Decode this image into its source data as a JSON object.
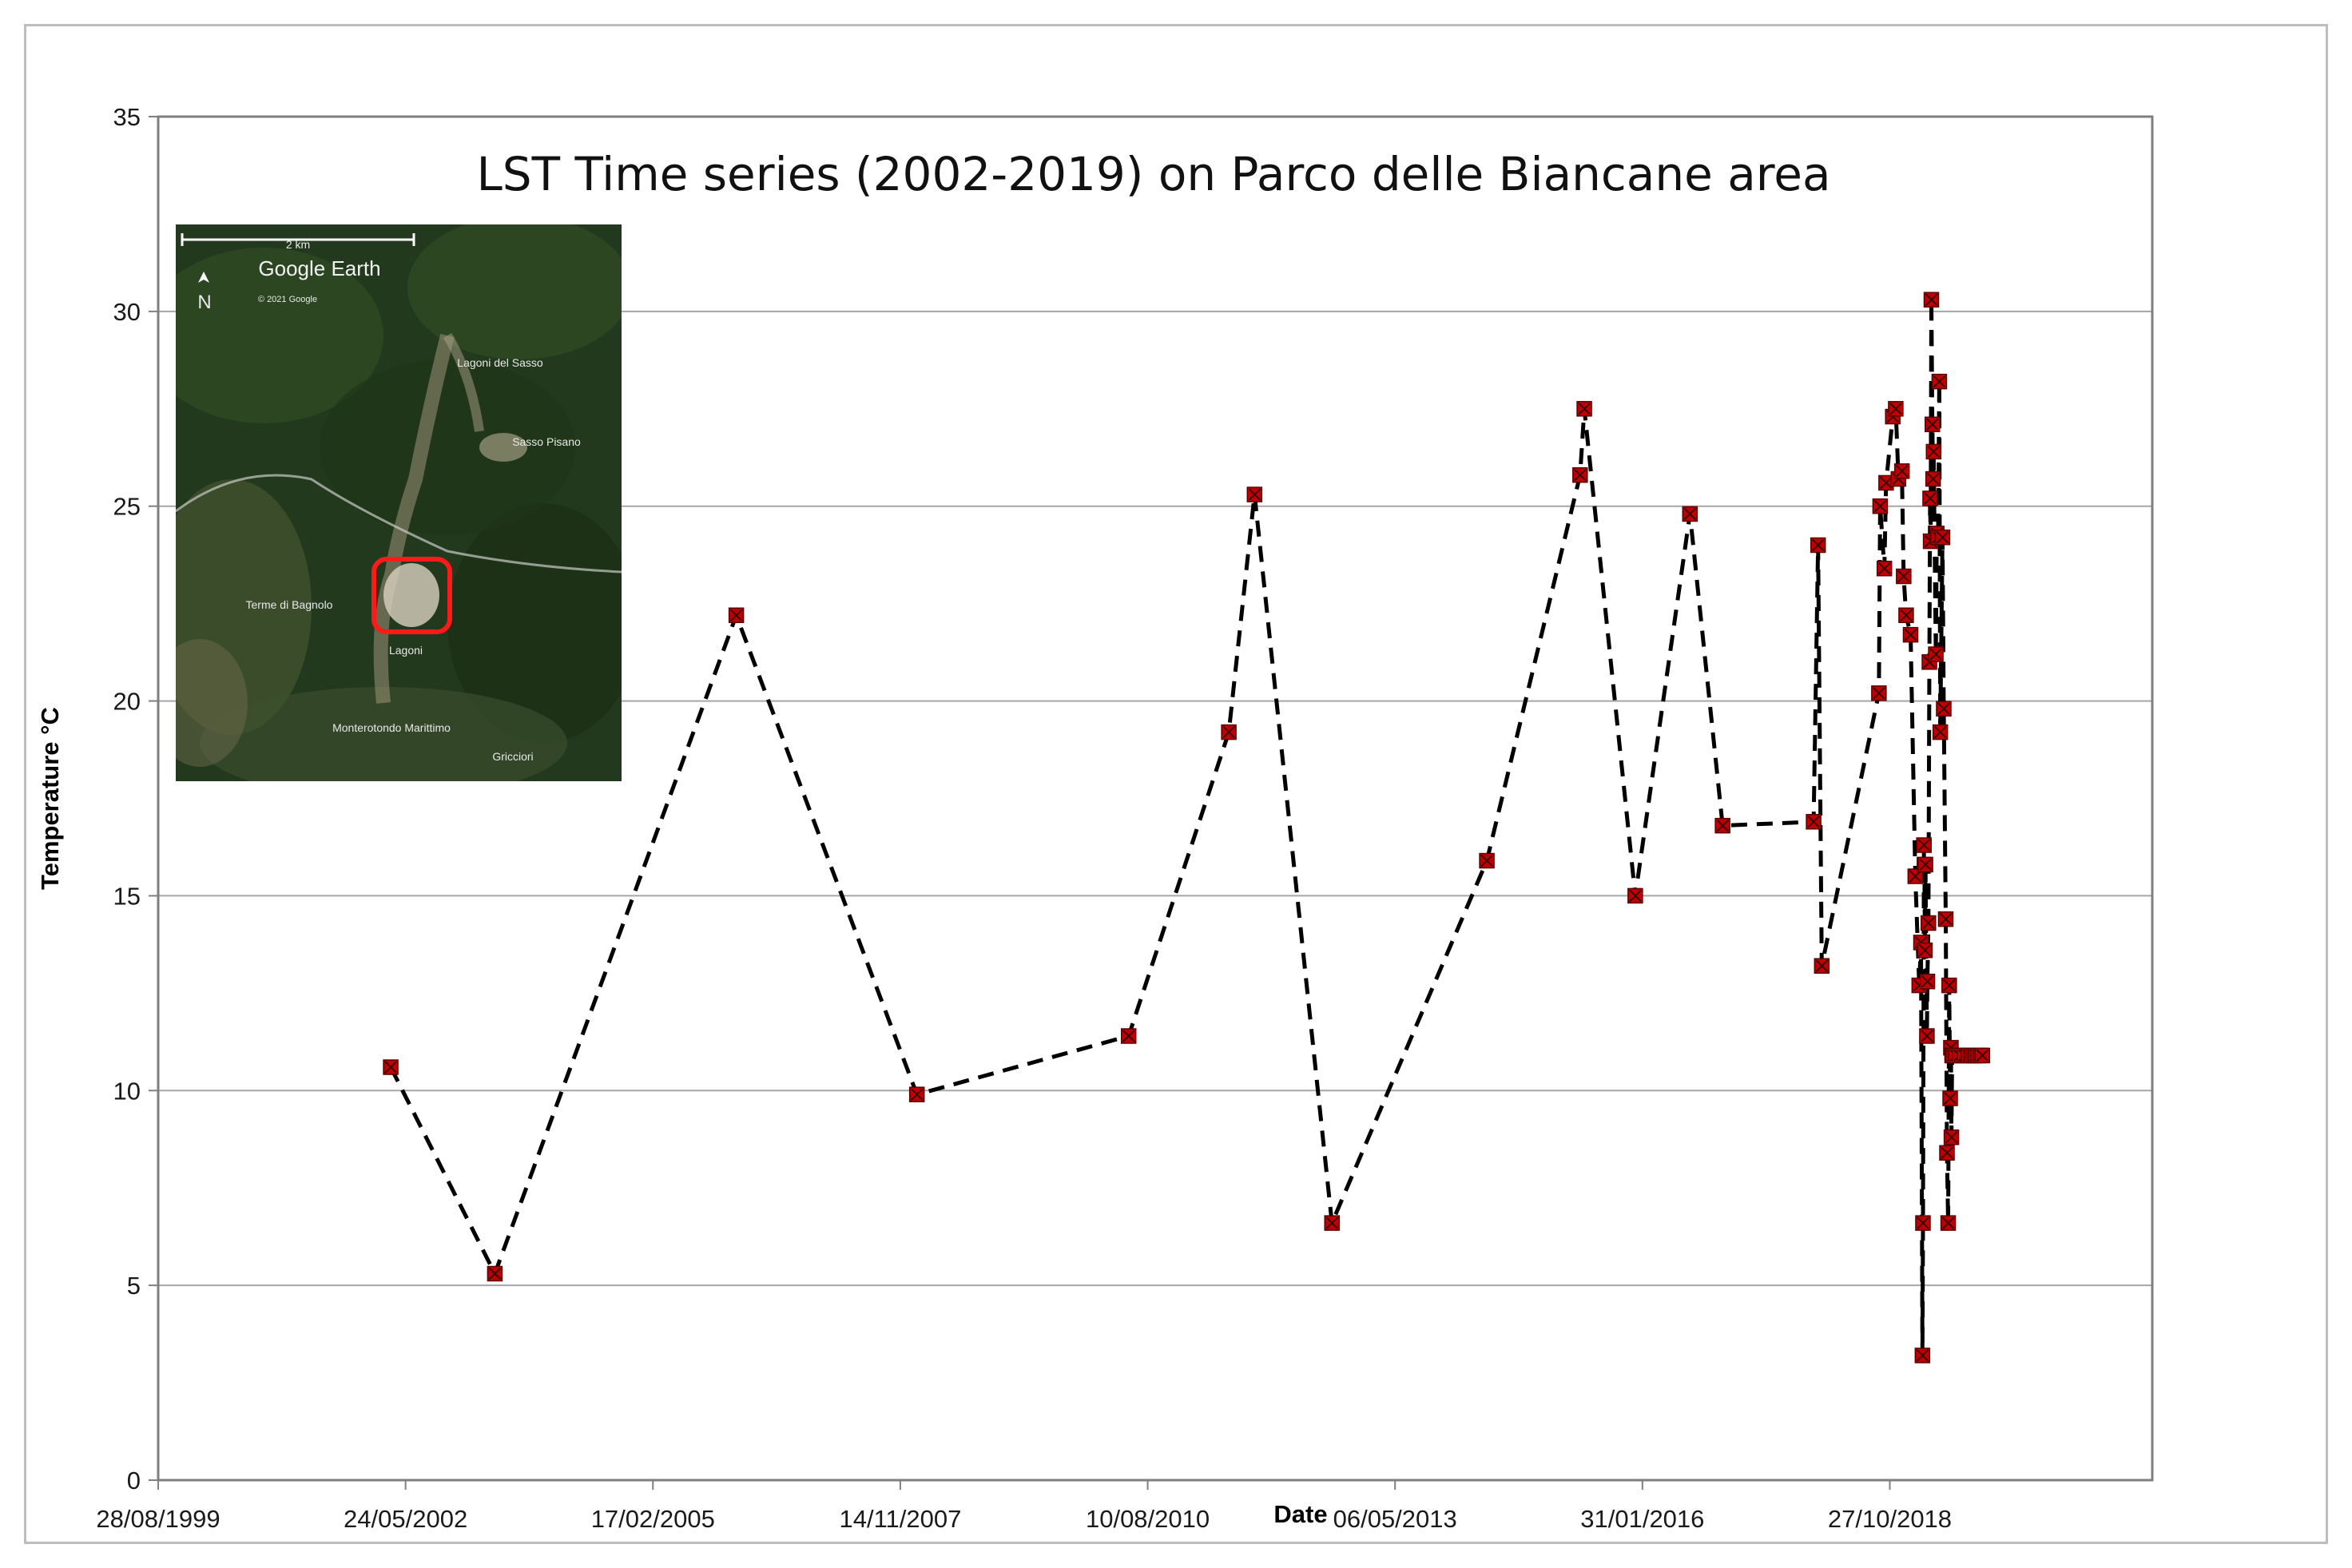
{
  "chart_data": {
    "type": "scatter",
    "title": "LST Time series (2002-2019) on Parco delle Biancane area",
    "xlabel": "Date",
    "ylabel": "Temperature °C",
    "ylim": [
      0,
      35
    ],
    "yticks": [
      0,
      5,
      10,
      15,
      20,
      25,
      30,
      35
    ],
    "xlim": [
      "1999-08-28",
      "2021-09-22"
    ],
    "xticks": [
      "1999-08-28",
      "2002-05-24",
      "2005-02-17",
      "2007-11-14",
      "2010-08-10",
      "2013-05-06",
      "2016-01-31",
      "2018-10-27"
    ],
    "xtick_labels": [
      "28/08/1999",
      "24/05/2002",
      "17/02/2005",
      "14/11/2007",
      "10/08/2010",
      "06/05/2013",
      "31/01/2016",
      "27/10/2018"
    ],
    "grid": "horizontal",
    "legend": "none",
    "line_style": "dashed",
    "line_color": "#000000",
    "marker_color": "#c00000",
    "series": [
      {
        "x": [
          "2002-03-25",
          "2003-05-20",
          "2006-01-20",
          "2008-01-20",
          "2010-05-25",
          "2011-07-04",
          "2011-10-16",
          "2012-08-24",
          "2014-05-12",
          "2015-05-24",
          "2015-06-10",
          "2016-01-02",
          "2016-08-10",
          "2016-12-20",
          "2017-12-23",
          "2018-01-10",
          "2018-01-25",
          "2018-09-13",
          "2018-09-18",
          "2018-10-05",
          "2018-10-12",
          "2018-11-08",
          "2018-11-20",
          "2018-12-01",
          "2018-12-15",
          "2018-12-22",
          "2019-01-01",
          "2019-01-19",
          "2019-02-07",
          "2019-02-23",
          "2019-03-02",
          "2019-03-08",
          "2019-03-10",
          "2019-03-14",
          "2019-03-16",
          "2019-03-18",
          "2019-03-20",
          "2019-03-26",
          "2019-03-28",
          "2019-04-01",
          "2019-04-05",
          "2019-04-08",
          "2019-04-10",
          "2019-04-13",
          "2019-04-17",
          "2019-04-20",
          "2019-04-22",
          "2019-05-01",
          "2019-05-05",
          "2019-05-10",
          "2019-05-15",
          "2019-05-19",
          "2019-05-28",
          "2019-06-02",
          "2019-06-10",
          "2019-06-15",
          "2019-06-20",
          "2019-06-24",
          "2019-06-28",
          "2019-07-01",
          "2019-07-03",
          "2019-07-06",
          "2019-07-10",
          "2019-07-20",
          "2019-08-05",
          "2019-08-25",
          "2019-09-10",
          "2019-09-20",
          "2019-09-25",
          "2019-10-02",
          "2019-10-10",
          "2019-10-19",
          "2019-10-29",
          "2019-11-05"
        ],
        "y": [
          10.6,
          5.3,
          22.2,
          9.9,
          11.4,
          19.2,
          25.3,
          6.6,
          15.9,
          25.8,
          27.5,
          15.0,
          24.8,
          16.8,
          16.9,
          24.0,
          13.2,
          20.2,
          25.0,
          23.4,
          25.6,
          27.3,
          27.5,
          25.7,
          25.9,
          23.2,
          22.2,
          21.7,
          15.5,
          12.7,
          13.8,
          3.2,
          6.6,
          16.3,
          15.8,
          13.6,
          15.8,
          11.4,
          12.8,
          14.3,
          21.0,
          25.2,
          24.1,
          30.3,
          27.1,
          25.7,
          26.4,
          21.2,
          24.3,
          24.2,
          28.2,
          19.2,
          24.2,
          19.8,
          14.4,
          8.4,
          6.6,
          12.7,
          9.8,
          11.1,
          8.8,
          10.9,
          10.9,
          10.9,
          10.9,
          10.9,
          10.9,
          10.9,
          10.9,
          10.9,
          10.9,
          10.9,
          10.9,
          10.9
        ]
      }
    ]
  },
  "inset_map": {
    "scale_label": "2 km",
    "brand": "Google Earth",
    "north_label": "N",
    "copyright": "© 2021 Google",
    "places": [
      "Lagoni del Sasso",
      "Sasso Pisano",
      "Terme di Bagnolo",
      "Lagoni",
      "Monterotondo Marittimo",
      "Gricciori"
    ],
    "highlight_color": "#ff1a1a"
  }
}
